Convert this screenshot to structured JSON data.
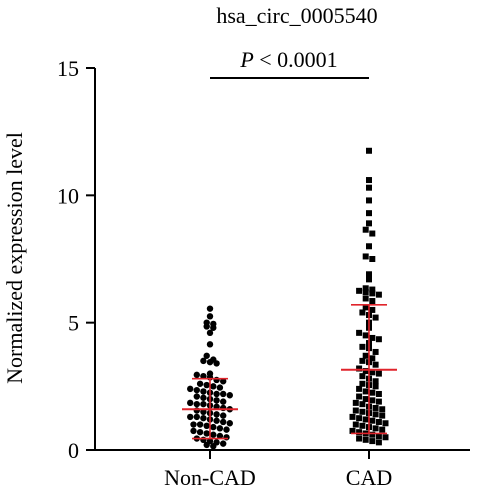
{
  "chart_data": {
    "type": "scatter",
    "title": "hsa_circ_0005540",
    "ylabel": "Normalized expression level",
    "xlabel": "",
    "ylim": [
      0,
      15
    ],
    "yticks": [
      0,
      5,
      10,
      15
    ],
    "categories": [
      "Non-CAD",
      "CAD"
    ],
    "significance": {
      "text_italic": "P",
      "text_rest": " < 0.0001",
      "between": [
        "Non-CAD",
        "CAD"
      ]
    },
    "summary_color": "#e0242b",
    "series": [
      {
        "category": "Non-CAD",
        "marker": "circle",
        "mean": 1.6,
        "sd_upper": 2.8,
        "sd_lower": 0.45,
        "values": [
          5.55,
          5.25,
          5.0,
          4.95,
          4.85,
          4.8,
          4.6,
          4.15,
          3.7,
          3.55,
          3.5,
          3.45,
          3.4,
          3.0,
          2.95,
          2.9,
          2.85,
          2.75,
          2.7,
          2.6,
          2.55,
          2.5,
          2.45,
          2.4,
          2.35,
          2.3,
          2.25,
          2.2,
          2.2,
          2.15,
          2.1,
          2.05,
          2.0,
          1.95,
          1.9,
          1.85,
          1.8,
          1.8,
          1.75,
          1.7,
          1.65,
          1.6,
          1.55,
          1.5,
          1.45,
          1.4,
          1.35,
          1.3,
          1.3,
          1.25,
          1.2,
          1.15,
          1.1,
          1.05,
          1.0,
          1.0,
          0.95,
          0.9,
          0.85,
          0.8,
          0.75,
          0.7,
          0.65,
          0.6,
          0.55,
          0.5,
          0.45,
          0.4,
          0.35,
          0.3,
          0.25,
          0.2,
          0.15
        ]
      },
      {
        "category": "CAD",
        "marker": "square",
        "mean": 3.15,
        "sd_upper": 5.7,
        "sd_lower": 0.65,
        "values": [
          11.75,
          10.6,
          10.3,
          9.8,
          9.3,
          8.9,
          8.65,
          8.5,
          8.0,
          7.6,
          7.5,
          6.9,
          6.7,
          6.35,
          6.3,
          6.25,
          6.2,
          6.15,
          6.1,
          5.95,
          5.85,
          5.6,
          5.5,
          5.4,
          5.3,
          5.2,
          5.0,
          4.8,
          4.6,
          4.5,
          4.4,
          4.35,
          4.2,
          4.05,
          4.0,
          3.85,
          3.7,
          3.6,
          3.5,
          3.45,
          3.35,
          3.2,
          3.1,
          3.05,
          3.0,
          2.9,
          2.8,
          2.7,
          2.6,
          2.55,
          2.5,
          2.4,
          2.3,
          2.25,
          2.2,
          2.1,
          2.0,
          1.95,
          1.9,
          1.85,
          1.8,
          1.7,
          1.65,
          1.6,
          1.55,
          1.5,
          1.45,
          1.4,
          1.35,
          1.3,
          1.25,
          1.2,
          1.15,
          1.1,
          1.05,
          1.0,
          0.95,
          0.9,
          0.85,
          0.8,
          0.75,
          0.7,
          0.65,
          0.6,
          0.55,
          0.5,
          0.45,
          0.4,
          0.35,
          0.3
        ]
      }
    ]
  }
}
